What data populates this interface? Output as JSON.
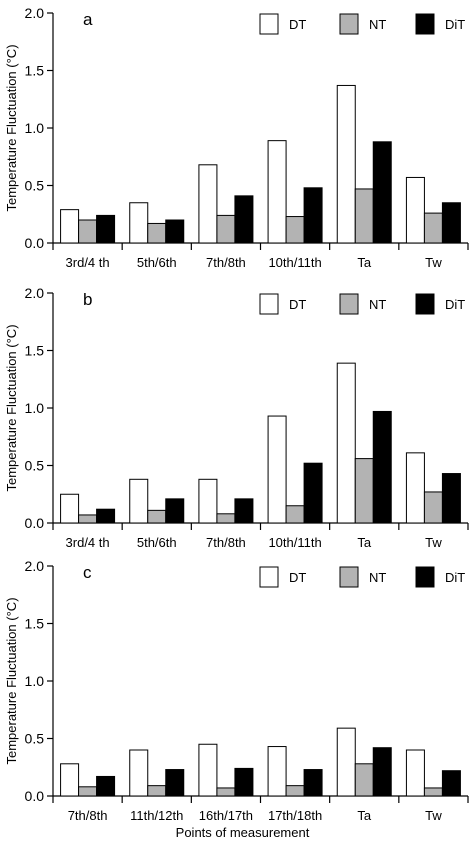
{
  "figure": {
    "ylabel": "Temperature Fluctuation (°C)",
    "xlabel": "Points of measurement"
  },
  "legend": [
    {
      "name": "DT",
      "color": "#ffffff"
    },
    {
      "name": "NT",
      "color": "#b3b3b3"
    },
    {
      "name": "DiT",
      "color": "#000000"
    }
  ],
  "chart_data": [
    {
      "type": "bar",
      "panel": "a",
      "ylim": [
        0,
        2.0
      ],
      "yticks": [
        "0.0",
        "0.5",
        "1.0",
        "1.5",
        "2.0"
      ],
      "categories": [
        "3rd/4 th",
        "5th/6th",
        "7th/8th",
        "10th/11th",
        "Ta",
        "Tw"
      ],
      "series": [
        {
          "name": "DT",
          "values": [
            0.29,
            0.35,
            0.68,
            0.89,
            1.37,
            0.57
          ]
        },
        {
          "name": "NT",
          "values": [
            0.2,
            0.17,
            0.24,
            0.23,
            0.47,
            0.26
          ]
        },
        {
          "name": "DiT",
          "values": [
            0.24,
            0.2,
            0.41,
            0.48,
            0.88,
            0.35
          ]
        }
      ]
    },
    {
      "type": "bar",
      "panel": "b",
      "ylim": [
        0,
        2.0
      ],
      "yticks": [
        "0.0",
        "0.5",
        "1.0",
        "1.5",
        "2.0"
      ],
      "categories": [
        "3rd/4 th",
        "5th/6th",
        "7th/8th",
        "10th/11th",
        "Ta",
        "Tw"
      ],
      "series": [
        {
          "name": "DT",
          "values": [
            0.25,
            0.38,
            0.38,
            0.93,
            1.39,
            0.61
          ]
        },
        {
          "name": "NT",
          "values": [
            0.07,
            0.11,
            0.08,
            0.15,
            0.56,
            0.27
          ]
        },
        {
          "name": "DiT",
          "values": [
            0.12,
            0.21,
            0.21,
            0.52,
            0.97,
            0.43
          ]
        }
      ]
    },
    {
      "type": "bar",
      "panel": "c",
      "ylim": [
        0,
        2.0
      ],
      "yticks": [
        "0.0",
        "0.5",
        "1.0",
        "1.5",
        "2.0"
      ],
      "categories": [
        "7th/8th",
        "11th/12th",
        "16th/17th",
        "17th/18th",
        "Ta",
        "Tw"
      ],
      "series": [
        {
          "name": "DT",
          "values": [
            0.28,
            0.4,
            0.45,
            0.43,
            0.59,
            0.4
          ]
        },
        {
          "name": "NT",
          "values": [
            0.08,
            0.09,
            0.07,
            0.09,
            0.28,
            0.07
          ]
        },
        {
          "name": "DiT",
          "values": [
            0.17,
            0.23,
            0.24,
            0.23,
            0.42,
            0.22
          ]
        }
      ]
    }
  ]
}
